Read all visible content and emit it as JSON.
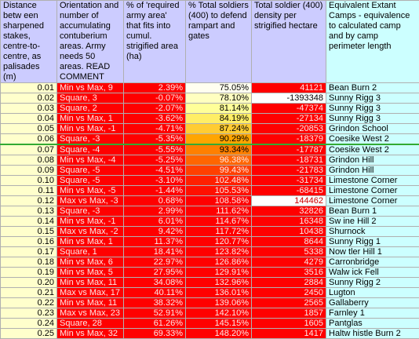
{
  "table": {
    "header": [
      "Distance betw een sharpened stakes, centre-to-centre, as palisades (m)",
      "Orientation and number of accumulating contuberium areas. Army needs 50 areas. READ COMMENT",
      "% of 'required army area' that fits into cumul. strigified area (ha)",
      "% Total soldiers (400) to defend rampart and gates",
      "Total soldier (400) density per strigified hectare",
      "Equivalent Extant Camps - equivalence to calculated camp and by camp perimeter length"
    ],
    "rows": [
      [
        "0.01",
        "Min vs Max, 9",
        "2.39%",
        "75.05%",
        "41121",
        "Bean Burn 2"
      ],
      [
        "0.02",
        "Square, 3",
        "-0.07%",
        "78.10%",
        "-1393348",
        "Sunny Rigg 3"
      ],
      [
        "0.03",
        "Square, 2",
        "-2.07%",
        "81.14%",
        "-47374",
        "Sunny Rigg 3"
      ],
      [
        "0.04",
        "Min vs Max, 1",
        "-3.62%",
        "84.19%",
        "-27134",
        "Sunny Rigg 3"
      ],
      [
        "0.05",
        "Min vs Max, -1",
        "-4.71%",
        "87.24%",
        "-20853",
        "Grindon School"
      ],
      [
        "0.06",
        "Square, -3",
        "-5.35%",
        "90.29%",
        "-18379",
        "Coesike West 2"
      ],
      [
        "0.07",
        "Square, -4",
        "-5.55%",
        "93.34%",
        "-17787",
        "Coesike West 2"
      ],
      [
        "0.08",
        "Min vs Max, -4",
        "-5.25%",
        "96.38%",
        "-18731",
        "Grindon Hill"
      ],
      [
        "0.09",
        "Square, -5",
        "-4.51%",
        "99.43%",
        "-21783",
        "Grindon Hill"
      ],
      [
        "0.10",
        "Square, -5",
        "-3.10%",
        "102.48%",
        "-31734",
        "Limestone Corner"
      ],
      [
        "0.11",
        "Min vs Max, -5",
        "-1.44%",
        "105.53%",
        "-68415",
        "Limestone Corner"
      ],
      [
        "0.12",
        "Max vs Max, -3",
        "0.68%",
        "108.58%",
        "144462",
        "Limestone Corner"
      ],
      [
        "0.13",
        "Square, -3",
        "2.99%",
        "111.62%",
        "32826",
        "Bean Burn 1"
      ],
      [
        "0.14",
        "Min vs Max, -1",
        "6.01%",
        "114.67%",
        "16348",
        "Sw ine Hill 2"
      ],
      [
        "0.15",
        "Max vs Max, -2",
        "9.42%",
        "117.72%",
        "10438",
        "Shurnock"
      ],
      [
        "0.16",
        "Min vs Max, 1",
        "11.37%",
        "120.77%",
        "8644",
        "Sunny Rigg 1"
      ],
      [
        "0.17",
        "Square, 1",
        "18.41%",
        "123.82%",
        "5338",
        "Now tler Hill 1"
      ],
      [
        "0.18",
        "Min vs Max, 6",
        "22.97%",
        "126.86%",
        "4279",
        "Carronbridge"
      ],
      [
        "0.19",
        "Min vs Max, 5",
        "27.95%",
        "129.91%",
        "3516",
        "Walw ick Fell"
      ],
      [
        "0.20",
        "Min vs Max, 11",
        "34.08%",
        "132.96%",
        "2884",
        "Sunny Rigg 2"
      ],
      [
        "0.21",
        "Max vs Max, 17",
        "40.11%",
        "136.01%",
        "2450",
        "Lugton"
      ],
      [
        "0.22",
        "Min vs Max, 11",
        "38.32%",
        "139.06%",
        "2565",
        "Gallaberry"
      ],
      [
        "0.23",
        "Max vs Max, 23",
        "52.91%",
        "142.10%",
        "1857",
        "Farnley 1"
      ],
      [
        "0.24",
        "Square, 28",
        "61.26%",
        "145.15%",
        "1605",
        "Pantglas"
      ],
      [
        "0.25",
        "Min vs Max, 32",
        "69.33%",
        "148.20%",
        "1417",
        "Haltw histle Burn 2"
      ]
    ]
  }
}
